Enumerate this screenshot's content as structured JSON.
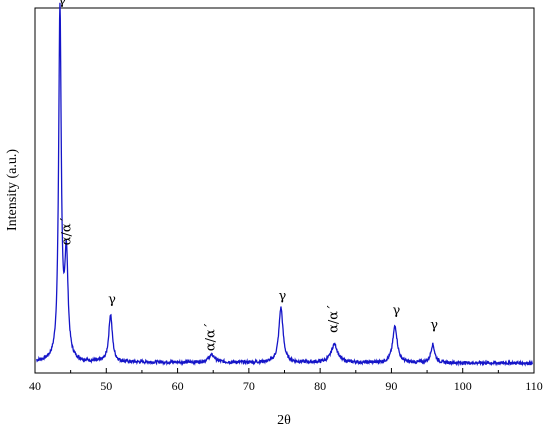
{
  "chart_data": {
    "type": "line",
    "title": "",
    "xlabel": "2θ",
    "ylabel": "Intensity (a.u.)",
    "xlim": [
      40,
      110
    ],
    "ylim": [
      0,
      100
    ],
    "x_ticks": [
      40,
      50,
      60,
      70,
      80,
      90,
      100,
      110
    ],
    "y_ticks_shown": false,
    "grid": false,
    "legend": "none",
    "series": [
      {
        "color": "#1515c8",
        "baseline": 3,
        "peaks": [
          {
            "x": 43.5,
            "height": 96,
            "width": 0.22
          },
          {
            "x": 44.4,
            "height": 28,
            "width": 0.28
          },
          {
            "x": 50.6,
            "height": 13,
            "width": 0.3
          },
          {
            "x": 64.8,
            "height": 2,
            "width": 0.55
          },
          {
            "x": 74.5,
            "height": 15,
            "width": 0.35
          },
          {
            "x": 82.0,
            "height": 5,
            "width": 0.55
          },
          {
            "x": 90.5,
            "height": 10,
            "width": 0.38
          },
          {
            "x": 95.8,
            "height": 5,
            "width": 0.32
          }
        ]
      }
    ],
    "annotations": [
      {
        "text": "γ",
        "x": 43.8,
        "y": 101
      },
      {
        "text": "α/α΄",
        "x": 45.0,
        "y": 35,
        "rotate": true
      },
      {
        "text": "γ",
        "x": 50.8,
        "y": 19
      },
      {
        "text": "α/α΄",
        "x": 65.2,
        "y": 6,
        "rotate": true
      },
      {
        "text": "γ",
        "x": 74.7,
        "y": 20
      },
      {
        "text": "α/α΄",
        "x": 82.4,
        "y": 11,
        "rotate": true
      },
      {
        "text": "γ",
        "x": 90.7,
        "y": 16
      },
      {
        "text": "γ",
        "x": 96.0,
        "y": 12
      }
    ]
  }
}
